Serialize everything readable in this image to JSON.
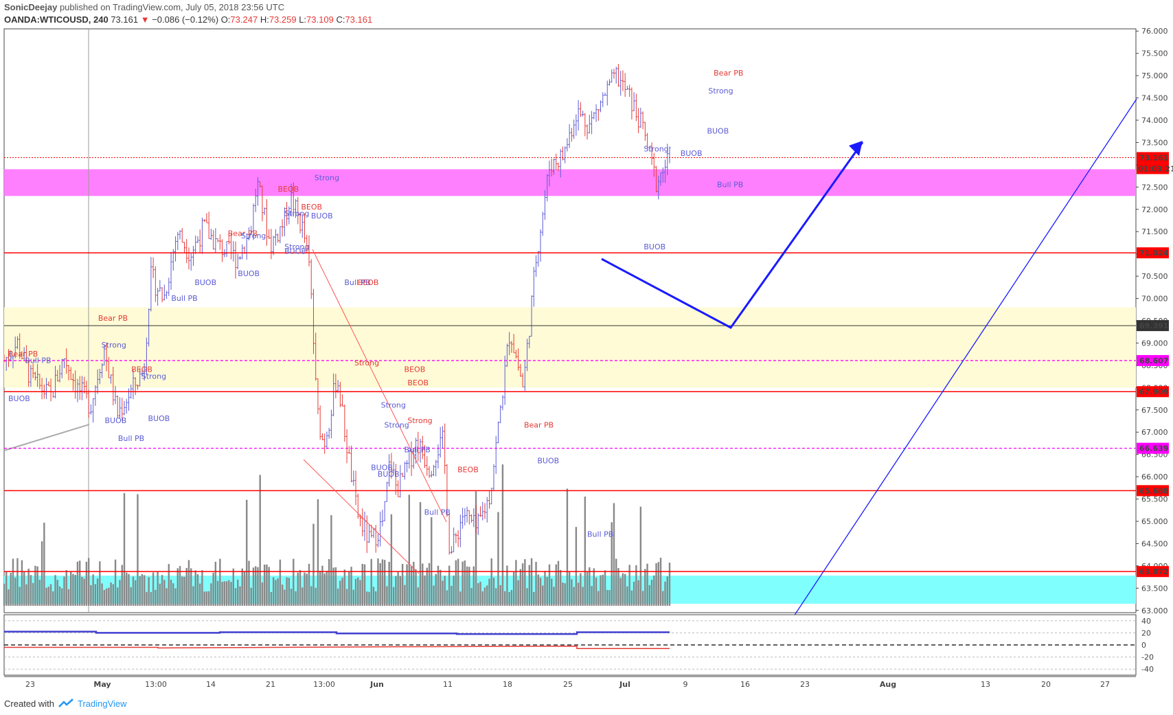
{
  "header": {
    "author": "SonicDeejay",
    "published": "published on TradingView.com, July 05, 2018 23:56 UTC",
    "symbol": "OANDA:WTICOUSD, 240",
    "last": "73.161",
    "change": "−0.086 (−0.12%)",
    "open_label": "O:",
    "open": "73.247",
    "high_label": "H:",
    "high": "73.259",
    "low_label": "L:",
    "low": "73.109",
    "close_label": "C:",
    "close": "73.161"
  },
  "footer": {
    "created_with": "Created with",
    "brand": "TradingView"
  },
  "colors": {
    "bull": "#5b5bd6",
    "bear": "#e53935",
    "volume": "#888888",
    "magenta_zone": "#ff80ff",
    "yellow_zone": "#fffbd6",
    "cyan_zone": "#80ffff",
    "level_red": "#ff0000",
    "level_black": "#333333",
    "level_magenta": "#ff00ff",
    "arrow": "#1a1aff",
    "trendline": "#1a1aff"
  },
  "chart_data": {
    "type": "line",
    "title": "",
    "xlabel": "",
    "ylabel": "",
    "ylim": [
      62.95,
      76.05
    ],
    "x_ticks": [
      "23",
      "May",
      "13:00",
      "14",
      "21",
      "13:00",
      "Jun",
      "11",
      "18",
      "25",
      "Jul",
      "9",
      "16",
      "23",
      "Aug",
      "13",
      "20",
      "27"
    ],
    "y_ticks": [
      "76.000",
      "75.500",
      "75.000",
      "74.500",
      "74.000",
      "73.500",
      "73.000",
      "72.500",
      "72.000",
      "71.500",
      "71.000",
      "70.500",
      "70.000",
      "69.500",
      "69.000",
      "68.500",
      "68.000",
      "67.500",
      "67.000",
      "66.500",
      "66.000",
      "65.500",
      "65.000",
      "64.500",
      "64.000",
      "63.500",
      "63.000"
    ],
    "price_path": {
      "name": "",
      "x_frac": [
        0,
        0.02,
        0.04,
        0.07,
        0.09,
        0.11,
        0.13,
        0.15,
        0.17,
        0.19,
        0.21,
        0.22,
        0.24,
        0.26,
        0.28,
        0.3,
        0.32,
        0.35,
        0.37,
        0.38,
        0.4,
        0.42,
        0.43,
        0.45,
        0.46,
        0.47,
        0.48,
        0.49,
        0.5,
        0.51,
        0.52,
        0.53,
        0.55,
        0.57,
        0.58,
        0.59,
        0.6,
        0.62,
        0.64,
        0.65,
        0.66,
        0.67,
        0.69,
        0.71,
        0.73,
        0.74,
        0.76,
        0.78,
        0.8,
        0.82,
        0.84,
        0.86,
        0.88,
        0.9,
        0.92,
        0.94,
        0.96,
        0.98,
        1.0
      ],
      "values": [
        68.6,
        69.0,
        68.2,
        67.8,
        68.7,
        68.0,
        67.6,
        68.9,
        67.4,
        67.9,
        68.4,
        70.5,
        70.0,
        71.5,
        71.0,
        71.6,
        71.2,
        70.9,
        71.5,
        72.6,
        71.2,
        71.7,
        72.3,
        71.5,
        70.5,
        67.5,
        66.7,
        67.4,
        68.3,
        67.2,
        66.2,
        65.2,
        64.5,
        65.0,
        66.4,
        65.7,
        66.0,
        66.8,
        66.2,
        66.6,
        66.8,
        64.2,
        65.2,
        64.8,
        65.6,
        66.8,
        69.3,
        68.0,
        71.0,
        73.0,
        73.2,
        74.2,
        73.9,
        74.5,
        75.0,
        74.5,
        73.8,
        72.6,
        73.16
      ]
    },
    "levels": [
      {
        "value": 73.161,
        "label": "73.161",
        "style": "dotted-red"
      },
      {
        "value": 71.024,
        "label": "71.024",
        "style": "solid-red"
      },
      {
        "value": 69.391,
        "label": "69.391",
        "style": "solid-black"
      },
      {
        "value": 68.607,
        "label": "68.607",
        "style": "dashed-magenta"
      },
      {
        "value": 67.909,
        "label": "67.909",
        "style": "solid-red"
      },
      {
        "value": 66.639,
        "label": "66.639",
        "style": "dashed-magenta"
      },
      {
        "value": 65.688,
        "label": "65.688",
        "style": "solid-red"
      },
      {
        "value": 63.872,
        "label": "63.872",
        "style": "solid-red"
      }
    ],
    "countdown": "01:03:21",
    "zones": [
      {
        "name": "magenta",
        "from": 72.3,
        "to": 72.9
      },
      {
        "name": "yellow",
        "from": 68.0,
        "to": 69.8
      },
      {
        "name": "cyan",
        "from": 63.15,
        "to": 63.78
      }
    ],
    "annotations": [
      {
        "text": "Bear PB",
        "color": "bear",
        "x_frac": 0.0,
        "price": 68.7
      },
      {
        "text": "Bull PB",
        "color": "bull",
        "x_frac": 0.025,
        "price": 68.55
      },
      {
        "text": "BUOB",
        "color": "bull",
        "x_frac": 0.0,
        "price": 67.7
      },
      {
        "text": "Bear PB",
        "color": "bear",
        "x_frac": 0.135,
        "price": 69.5
      },
      {
        "text": "Strong",
        "color": "bull",
        "x_frac": 0.14,
        "price": 68.9
      },
      {
        "text": "BEOB",
        "color": "bear",
        "x_frac": 0.185,
        "price": 68.35
      },
      {
        "text": "Strong",
        "color": "bull",
        "x_frac": 0.2,
        "price": 68.2
      },
      {
        "text": "BUOB",
        "color": "bull",
        "x_frac": 0.145,
        "price": 67.2
      },
      {
        "text": "BUOB",
        "color": "bull",
        "x_frac": 0.21,
        "price": 67.25
      },
      {
        "text": "Bull PB",
        "color": "bull",
        "x_frac": 0.165,
        "price": 66.8
      },
      {
        "text": "Bull PB",
        "color": "bull",
        "x_frac": 0.245,
        "price": 69.95
      },
      {
        "text": "BUOB",
        "color": "bull",
        "x_frac": 0.28,
        "price": 70.3
      },
      {
        "text": "Bear PB",
        "color": "bear",
        "x_frac": 0.33,
        "price": 71.4
      },
      {
        "text": "Strong",
        "color": "bull",
        "x_frac": 0.35,
        "price": 71.35
      },
      {
        "text": "BUOB",
        "color": "bull",
        "x_frac": 0.345,
        "price": 70.5
      },
      {
        "text": "BEOB",
        "color": "bear",
        "x_frac": 0.405,
        "price": 72.4
      },
      {
        "text": "BEOB",
        "color": "bear",
        "x_frac": 0.44,
        "price": 72.0
      },
      {
        "text": "Strong",
        "color": "bull",
        "x_frac": 0.46,
        "price": 72.65
      },
      {
        "text": "Strong",
        "color": "bull",
        "x_frac": 0.415,
        "price": 71.85
      },
      {
        "text": "Strong",
        "color": "bull",
        "x_frac": 0.415,
        "price": 71.1
      },
      {
        "text": "BUOB",
        "color": "bull",
        "x_frac": 0.455,
        "price": 71.8
      },
      {
        "text": "BUOB",
        "color": "bull",
        "x_frac": 0.415,
        "price": 71.0
      },
      {
        "text": "Bull PB",
        "color": "bull",
        "x_frac": 0.505,
        "price": 70.3
      },
      {
        "text": "BEOB",
        "color": "bear",
        "x_frac": 0.525,
        "price": 70.3
      },
      {
        "text": "Strong",
        "color": "bear",
        "x_frac": 0.52,
        "price": 68.5
      },
      {
        "text": "Strong",
        "color": "bull",
        "x_frac": 0.56,
        "price": 67.55
      },
      {
        "text": "Strong",
        "color": "bull",
        "x_frac": 0.565,
        "price": 67.1
      },
      {
        "text": "Strong",
        "color": "bear",
        "x_frac": 0.6,
        "price": 67.2
      },
      {
        "text": "BEOB",
        "color": "bear",
        "x_frac": 0.595,
        "price": 68.35
      },
      {
        "text": "BEOB",
        "color": "bear",
        "x_frac": 0.6,
        "price": 68.05
      },
      {
        "text": "BUOB",
        "color": "bull",
        "x_frac": 0.545,
        "price": 66.15
      },
      {
        "text": "BUOB",
        "color": "bull",
        "x_frac": 0.555,
        "price": 66.0
      },
      {
        "text": "Bull PB",
        "color": "bull",
        "x_frac": 0.595,
        "price": 66.55
      },
      {
        "text": "BEOB",
        "color": "bear",
        "x_frac": 0.675,
        "price": 66.1
      },
      {
        "text": "Bull PB",
        "color": "bull",
        "x_frac": 0.625,
        "price": 65.15
      },
      {
        "text": "Bear PB",
        "color": "bear",
        "x_frac": 0.775,
        "price": 67.1
      },
      {
        "text": "BUOB",
        "color": "bull",
        "x_frac": 0.795,
        "price": 66.3
      },
      {
        "text": "Bull PB",
        "color": "bull",
        "x_frac": 0.87,
        "price": 64.65
      },
      {
        "text": "BUOB",
        "color": "bull",
        "x_frac": 0.955,
        "price": 71.1
      },
      {
        "text": "Strong",
        "color": "bull",
        "x_frac": 0.955,
        "price": 73.3
      },
      {
        "text": "BUOB",
        "color": "bull",
        "x_frac": 1.01,
        "price": 73.2
      },
      {
        "text": "Bear PB",
        "color": "bear",
        "x_frac": 1.06,
        "price": 75.0
      },
      {
        "text": "Strong",
        "color": "bull",
        "x_frac": 1.052,
        "price": 74.6
      },
      {
        "text": "BUOB",
        "color": "bull",
        "x_frac": 1.05,
        "price": 73.7
      },
      {
        "text": "Bull PB",
        "color": "bull",
        "x_frac": 1.065,
        "price": 72.5
      }
    ],
    "volume_axis": {
      "y_ticks": [
        "40",
        "20",
        "0",
        "-20",
        "-40"
      ]
    }
  }
}
